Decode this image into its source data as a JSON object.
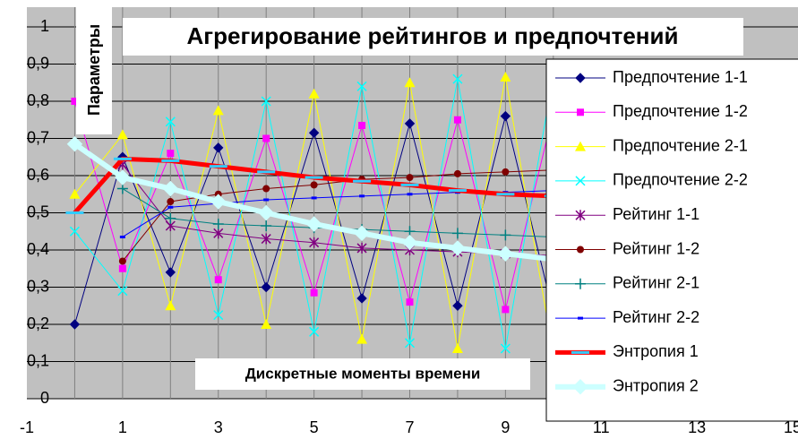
{
  "chart_data": {
    "type": "line",
    "title": "Агрегирование рейтингов и предпочтений",
    "y_label": "Параметры",
    "x_label": "Дискретные моменты времени",
    "x": [
      0,
      1,
      2,
      3,
      4,
      5,
      6,
      7,
      8,
      9,
      10
    ],
    "xlim": [
      -1,
      15
    ],
    "xticks": [
      -1,
      1,
      3,
      5,
      7,
      9,
      11,
      13,
      15
    ],
    "ylim": [
      0,
      1
    ],
    "yticks": [
      0,
      {
        "value": 0.1,
        "label": "0,1"
      },
      {
        "value": 0.2,
        "label": "0,2"
      },
      {
        "value": 0.3,
        "label": "0,3"
      },
      {
        "value": 0.4,
        "label": "0,4"
      },
      {
        "value": 0.5,
        "label": "0,5"
      },
      {
        "value": 0.6,
        "label": "0,6"
      },
      {
        "value": 0.7,
        "label": "0,7"
      },
      {
        "value": 0.8,
        "label": "0,8"
      },
      {
        "value": 0.9,
        "label": "0,9"
      },
      1
    ],
    "grid": true,
    "legend": "right",
    "series": [
      {
        "name": "Предпочтение 1-1",
        "color": "#000080",
        "marker": "diamond",
        "values": [
          0.2,
          0.65,
          0.34,
          0.675,
          0.3,
          0.715,
          0.27,
          0.74,
          0.25,
          0.76,
          0.23
        ]
      },
      {
        "name": "Предпочтение 1-2",
        "color": "#ff00ff",
        "marker": "square",
        "values": [
          0.8,
          0.35,
          0.66,
          0.32,
          0.7,
          0.285,
          0.735,
          0.26,
          0.75,
          0.24,
          0.77
        ]
      },
      {
        "name": "Предпочтение 2-1",
        "color": "#ffff00",
        "marker": "triangle",
        "values": [
          0.55,
          0.71,
          0.25,
          0.775,
          0.2,
          0.82,
          0.16,
          0.85,
          0.135,
          0.865,
          0.12
        ]
      },
      {
        "name": "Предпочтение 2-2",
        "color": "#00ffff",
        "marker": "x",
        "values": [
          0.45,
          0.29,
          0.745,
          0.225,
          0.8,
          0.18,
          0.84,
          0.15,
          0.86,
          0.135,
          0.87
        ]
      },
      {
        "name": "Рейтинг 1-1",
        "color": "#800080",
        "marker": "star",
        "values": [
          null,
          0.63,
          0.465,
          0.445,
          0.43,
          0.42,
          0.405,
          0.4,
          0.395,
          0.39,
          0.385
        ]
      },
      {
        "name": "Рейтинг 1-2",
        "color": "#800000",
        "marker": "circle",
        "values": [
          null,
          0.37,
          0.53,
          0.55,
          0.565,
          0.575,
          0.59,
          0.595,
          0.605,
          0.61,
          0.615
        ]
      },
      {
        "name": "Рейтинг 2-1",
        "color": "#008080",
        "marker": "plus",
        "values": [
          null,
          0.565,
          0.485,
          0.47,
          0.465,
          0.46,
          0.455,
          0.45,
          0.445,
          0.44,
          0.435
        ]
      },
      {
        "name": "Рейтинг 2-2",
        "color": "#0000ff",
        "marker": "dash",
        "values": [
          null,
          0.435,
          0.515,
          0.525,
          0.535,
          0.54,
          0.545,
          0.55,
          0.555,
          0.555,
          0.56
        ]
      },
      {
        "name": "Энтропия 1",
        "color": "#ff0000",
        "marker": "dash",
        "marker_color": "#33ccff",
        "line_width": 5,
        "values": [
          0.5,
          0.645,
          0.64,
          0.625,
          0.61,
          0.595,
          0.585,
          0.575,
          0.56,
          0.55,
          0.545
        ]
      },
      {
        "name": "Энтропия 2",
        "color": "#ccffff",
        "marker": "diamond",
        "line_width": 6,
        "values": [
          0.685,
          0.595,
          0.565,
          0.53,
          0.5,
          0.47,
          0.445,
          0.42,
          0.405,
          0.39,
          0.375
        ]
      }
    ]
  }
}
